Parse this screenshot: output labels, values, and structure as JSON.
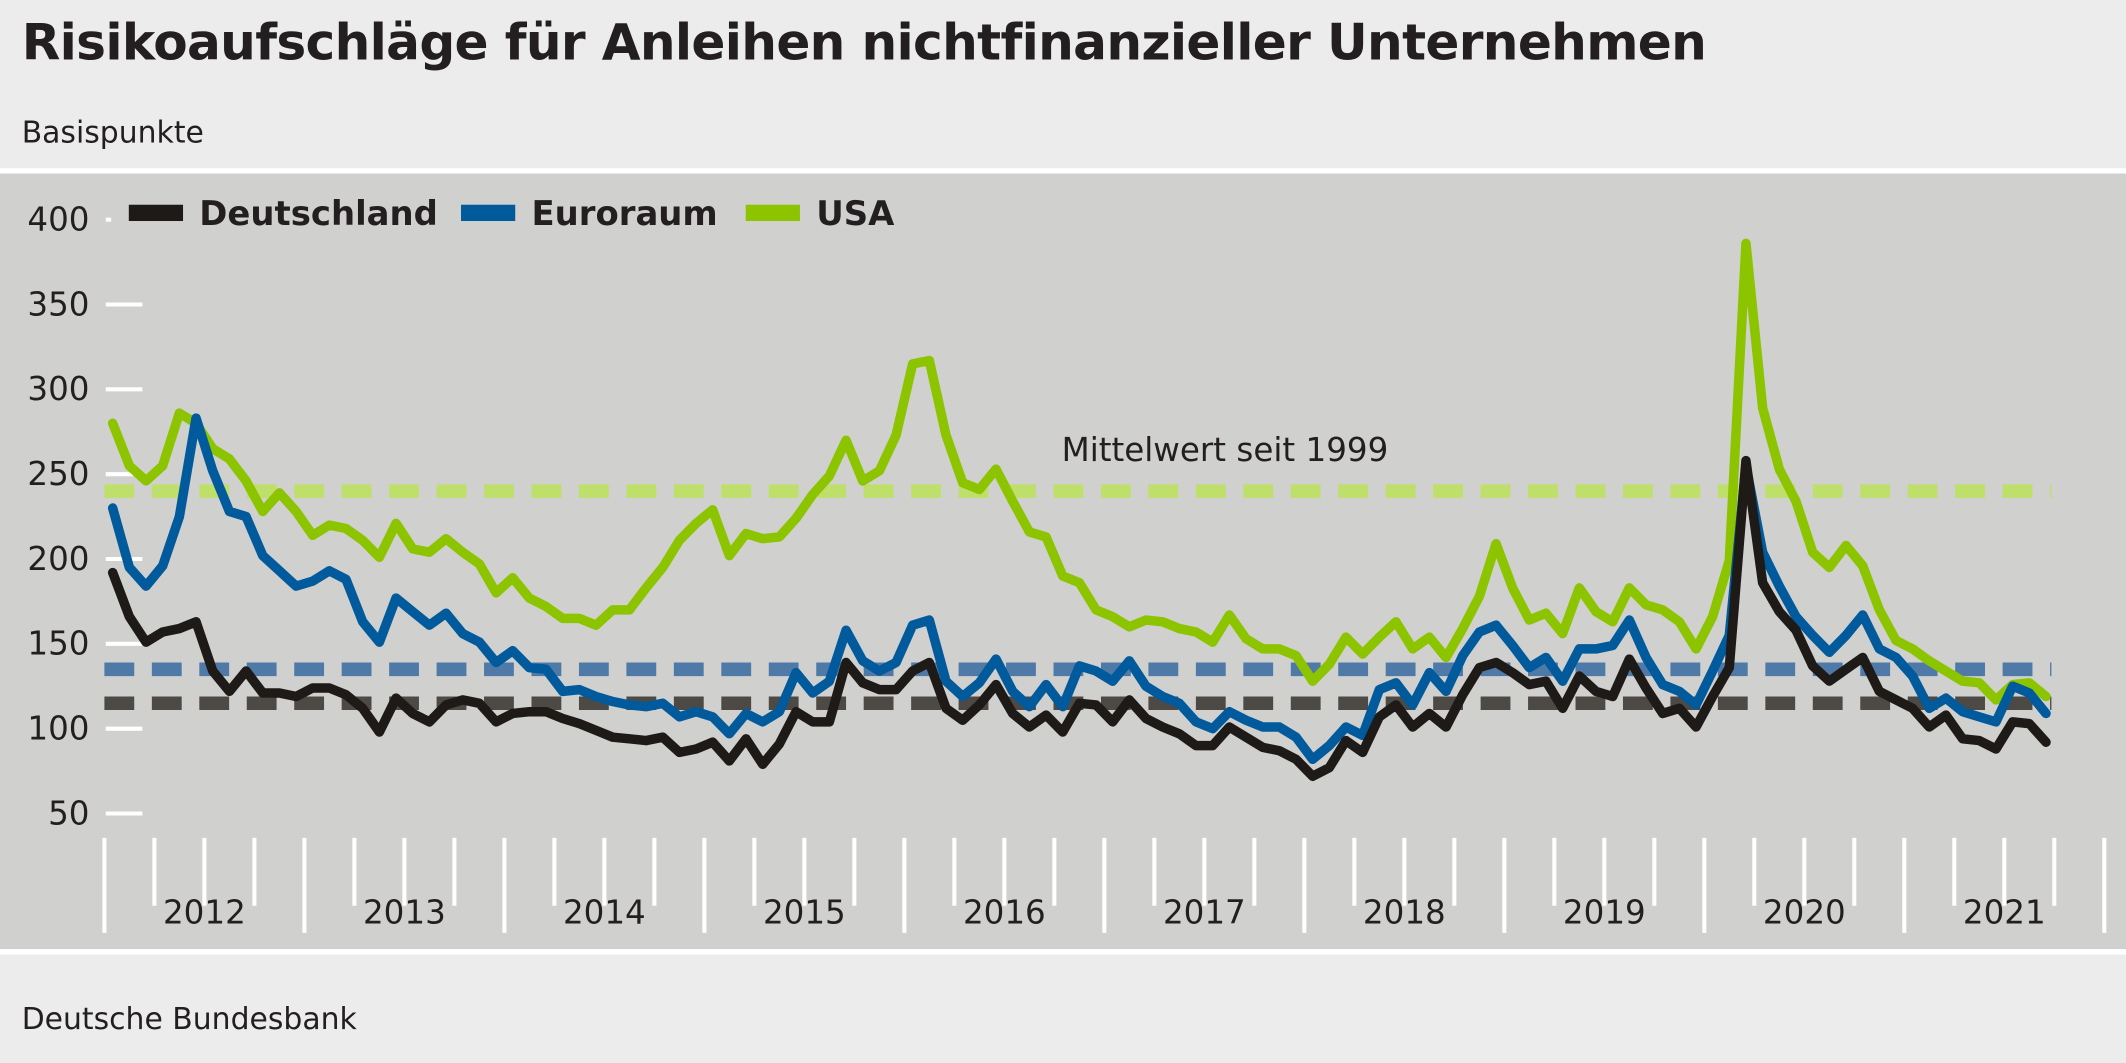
{
  "header": {
    "title": "Risikoaufschläge für Anleihen nichtfinanzieller Unternehmen",
    "unit": "Basispunkte"
  },
  "footer": {
    "source": "Deutsche Bundesbank"
  },
  "chart_data": {
    "type": "line",
    "title": "Risikoaufschläge für Anleihen nichtfinanzieller Unternehmen",
    "ylabel": "Basispunkte",
    "x_start": "2012-01",
    "x_end": "2021-09",
    "frequency": "monthly",
    "ylim": [
      50,
      400
    ],
    "yticks": [
      50,
      100,
      150,
      200,
      250,
      300,
      350,
      400
    ],
    "year_labels": [
      "2012",
      "2013",
      "2014",
      "2015",
      "2016",
      "2017",
      "2018",
      "2019",
      "2020",
      "2021"
    ],
    "legend_position": "top-left",
    "annotation": "Mittelwert seit 1999",
    "grid": false,
    "series": [
      {
        "name": "Deutschland",
        "color": "#1e1a18",
        "mean": 115,
        "mean_color": "#4d4a46",
        "values": [
          192,
          166,
          151,
          157,
          159,
          163,
          134,
          122,
          134,
          121,
          121,
          119,
          124,
          124,
          120,
          112,
          98,
          118,
          109,
          104,
          114,
          117,
          115,
          104,
          109,
          110,
          110,
          106,
          103,
          99,
          95,
          94,
          93,
          95,
          86,
          88,
          92,
          81,
          94,
          79,
          91,
          110,
          104,
          104,
          139,
          127,
          123,
          123,
          134,
          139,
          112,
          105,
          114,
          126,
          109,
          101,
          108,
          98,
          115,
          114,
          104,
          117,
          106,
          101,
          97,
          90,
          90,
          101,
          95,
          89,
          87,
          82,
          72,
          77,
          93,
          86,
          107,
          114,
          101,
          109,
          101,
          120,
          136,
          139,
          133,
          126,
          128,
          112,
          131,
          122,
          119,
          141,
          124,
          109,
          112,
          101,
          119,
          136,
          258,
          186,
          169,
          158,
          137,
          128,
          135,
          142,
          122,
          117,
          112,
          101,
          108,
          94,
          93,
          88,
          104,
          103,
          92
        ]
      },
      {
        "name": "Euroraum",
        "color": "#005a9b",
        "mean": 135,
        "mean_color": "#4f7aa8",
        "values": [
          230,
          195,
          184,
          196,
          225,
          283,
          252,
          228,
          225,
          202,
          193,
          184,
          187,
          193,
          188,
          163,
          151,
          177,
          169,
          161,
          168,
          156,
          151,
          139,
          146,
          136,
          135,
          122,
          123,
          119,
          116,
          114,
          113,
          115,
          107,
          110,
          107,
          97,
          109,
          104,
          110,
          133,
          121,
          128,
          158,
          140,
          134,
          139,
          161,
          164,
          128,
          119,
          127,
          141,
          122,
          113,
          126,
          113,
          137,
          134,
          128,
          140,
          125,
          119,
          115,
          104,
          100,
          110,
          105,
          101,
          101,
          95,
          82,
          90,
          101,
          96,
          123,
          127,
          114,
          133,
          122,
          143,
          157,
          161,
          149,
          136,
          142,
          128,
          147,
          147,
          149,
          164,
          142,
          126,
          122,
          114,
          134,
          155,
          255,
          204,
          184,
          166,
          155,
          145,
          155,
          167,
          147,
          142,
          131,
          112,
          118,
          110,
          107,
          104,
          125,
          121,
          109
        ]
      },
      {
        "name": "USA",
        "color": "#8dc400",
        "mean": 240,
        "mean_color": "#bee06a",
        "values": [
          280,
          255,
          246,
          255,
          286,
          280,
          265,
          259,
          246,
          228,
          239,
          228,
          214,
          220,
          218,
          211,
          201,
          221,
          206,
          204,
          212,
          204,
          197,
          180,
          189,
          177,
          172,
          165,
          165,
          161,
          170,
          170,
          183,
          195,
          211,
          221,
          229,
          202,
          215,
          212,
          213,
          224,
          238,
          249,
          270,
          246,
          252,
          273,
          315,
          317,
          273,
          245,
          241,
          253,
          234,
          216,
          213,
          190,
          186,
          170,
          166,
          160,
          164,
          163,
          159,
          157,
          151,
          167,
          153,
          147,
          147,
          143,
          128,
          138,
          154,
          144,
          154,
          163,
          147,
          154,
          142,
          159,
          178,
          209,
          183,
          164,
          168,
          156,
          183,
          169,
          163,
          183,
          173,
          170,
          163,
          147,
          166,
          199,
          386,
          289,
          253,
          234,
          204,
          195,
          208,
          196,
          170,
          152,
          147,
          140,
          134,
          128,
          127,
          117,
          126,
          127,
          119
        ]
      }
    ]
  }
}
